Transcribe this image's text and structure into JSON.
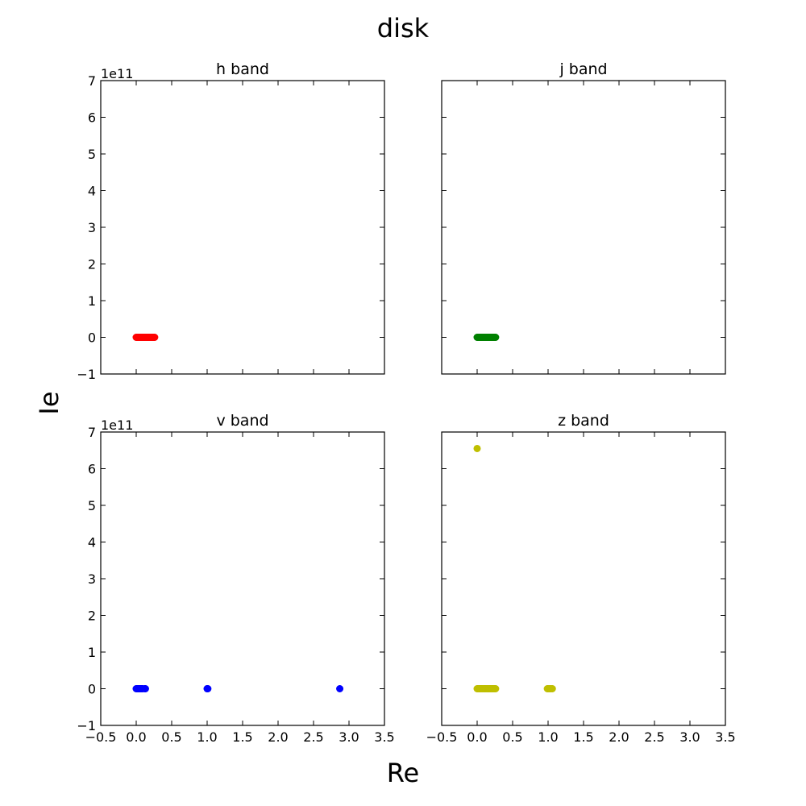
{
  "figure": {
    "title": "disk",
    "xlabel": "Re",
    "ylabel": "Ie"
  },
  "chart_data": [
    {
      "type": "scatter",
      "title": "h band",
      "color": "#ff0000",
      "xlim": [
        -0.5,
        3.5
      ],
      "ylim": [
        -1,
        7
      ],
      "y_offset_label": "1e11",
      "x_ticks": [
        "−0.5",
        "0.0",
        "0.5",
        "1.0",
        "1.5",
        "2.0",
        "2.5",
        "3.0",
        "3.5"
      ],
      "y_ticks": [
        "−1",
        "0",
        "1",
        "2",
        "3",
        "4",
        "5",
        "6",
        "7"
      ],
      "show_x_tick_labels": false,
      "show_y_tick_labels": true,
      "points": [
        {
          "x": 0.0,
          "y": 0
        },
        {
          "x": 0.01,
          "y": 0
        },
        {
          "x": 0.02,
          "y": 0
        },
        {
          "x": 0.03,
          "y": 0
        },
        {
          "x": 0.04,
          "y": 0
        },
        {
          "x": 0.05,
          "y": 0
        },
        {
          "x": 0.06,
          "y": 0
        },
        {
          "x": 0.07,
          "y": 0
        },
        {
          "x": 0.08,
          "y": 0
        },
        {
          "x": 0.09,
          "y": 0
        },
        {
          "x": 0.1,
          "y": 0
        },
        {
          "x": 0.11,
          "y": 0
        },
        {
          "x": 0.12,
          "y": 0
        },
        {
          "x": 0.13,
          "y": 0
        },
        {
          "x": 0.14,
          "y": 0
        },
        {
          "x": 0.15,
          "y": 0
        },
        {
          "x": 0.16,
          "y": 0
        },
        {
          "x": 0.17,
          "y": 0
        },
        {
          "x": 0.18,
          "y": 0
        },
        {
          "x": 0.19,
          "y": 0
        },
        {
          "x": 0.2,
          "y": 0
        },
        {
          "x": 0.21,
          "y": 0
        },
        {
          "x": 0.22,
          "y": 0
        },
        {
          "x": 0.23,
          "y": 0
        },
        {
          "x": 0.24,
          "y": 0
        },
        {
          "x": 0.25,
          "y": 0
        },
        {
          "x": 0.26,
          "y": 0
        }
      ]
    },
    {
      "type": "scatter",
      "title": "j band",
      "color": "#008000",
      "xlim": [
        -0.5,
        3.5
      ],
      "ylim": [
        -1,
        7
      ],
      "y_offset_label": "",
      "x_ticks": [
        "−0.5",
        "0.0",
        "0.5",
        "1.0",
        "1.5",
        "2.0",
        "2.5",
        "3.0",
        "3.5"
      ],
      "y_ticks": [
        "−1",
        "0",
        "1",
        "2",
        "3",
        "4",
        "5",
        "6",
        "7"
      ],
      "show_x_tick_labels": false,
      "show_y_tick_labels": false,
      "points": [
        {
          "x": 0.0,
          "y": 0
        },
        {
          "x": 0.01,
          "y": 0
        },
        {
          "x": 0.02,
          "y": 0
        },
        {
          "x": 0.03,
          "y": 0
        },
        {
          "x": 0.04,
          "y": 0
        },
        {
          "x": 0.05,
          "y": 0
        },
        {
          "x": 0.06,
          "y": 0
        },
        {
          "x": 0.07,
          "y": 0
        },
        {
          "x": 0.08,
          "y": 0
        },
        {
          "x": 0.09,
          "y": 0
        },
        {
          "x": 0.1,
          "y": 0
        },
        {
          "x": 0.11,
          "y": 0
        },
        {
          "x": 0.12,
          "y": 0
        },
        {
          "x": 0.13,
          "y": 0
        },
        {
          "x": 0.14,
          "y": 0
        },
        {
          "x": 0.15,
          "y": 0
        },
        {
          "x": 0.16,
          "y": 0
        },
        {
          "x": 0.17,
          "y": 0
        },
        {
          "x": 0.18,
          "y": 0
        },
        {
          "x": 0.19,
          "y": 0
        },
        {
          "x": 0.2,
          "y": 0
        },
        {
          "x": 0.21,
          "y": 0
        },
        {
          "x": 0.22,
          "y": 0
        },
        {
          "x": 0.23,
          "y": 0
        },
        {
          "x": 0.24,
          "y": 0
        },
        {
          "x": 0.25,
          "y": 0
        },
        {
          "x": 0.26,
          "y": 0
        }
      ]
    },
    {
      "type": "scatter",
      "title": "v band",
      "color": "#0000ff",
      "xlim": [
        -0.5,
        3.5
      ],
      "ylim": [
        -1,
        7
      ],
      "y_offset_label": "1e11",
      "x_ticks": [
        "−0.5",
        "0.0",
        "0.5",
        "1.0",
        "1.5",
        "2.0",
        "2.5",
        "3.0",
        "3.5"
      ],
      "y_ticks": [
        "−1",
        "0",
        "1",
        "2",
        "3",
        "4",
        "5",
        "6",
        "7"
      ],
      "show_x_tick_labels": true,
      "show_y_tick_labels": true,
      "points": [
        {
          "x": 0.0,
          "y": 0
        },
        {
          "x": 0.01,
          "y": 0
        },
        {
          "x": 0.02,
          "y": 0
        },
        {
          "x": 0.03,
          "y": 0
        },
        {
          "x": 0.04,
          "y": 0
        },
        {
          "x": 0.05,
          "y": 0
        },
        {
          "x": 0.06,
          "y": 0
        },
        {
          "x": 0.07,
          "y": 0
        },
        {
          "x": 0.08,
          "y": 0
        },
        {
          "x": 0.09,
          "y": 0
        },
        {
          "x": 0.12,
          "y": 0
        },
        {
          "x": 0.13,
          "y": 0
        },
        {
          "x": 1.0,
          "y": 0
        },
        {
          "x": 1.01,
          "y": 0
        },
        {
          "x": 2.87,
          "y": 0
        }
      ]
    },
    {
      "type": "scatter",
      "title": "z band",
      "color": "#bfbf00",
      "xlim": [
        -0.5,
        3.5
      ],
      "ylim": [
        -1,
        7
      ],
      "y_offset_label": "",
      "x_ticks": [
        "−0.5",
        "0.0",
        "0.5",
        "1.0",
        "1.5",
        "2.0",
        "2.5",
        "3.0",
        "3.5"
      ],
      "y_ticks": [
        "−1",
        "0",
        "1",
        "2",
        "3",
        "4",
        "5",
        "6",
        "7"
      ],
      "show_x_tick_labels": true,
      "show_y_tick_labels": false,
      "points": [
        {
          "x": 0.0,
          "y": 6.55
        },
        {
          "x": 0.0,
          "y": 0
        },
        {
          "x": 0.01,
          "y": 0
        },
        {
          "x": 0.02,
          "y": 0
        },
        {
          "x": 0.03,
          "y": 0
        },
        {
          "x": 0.04,
          "y": 0
        },
        {
          "x": 0.05,
          "y": 0
        },
        {
          "x": 0.06,
          "y": 0
        },
        {
          "x": 0.07,
          "y": 0
        },
        {
          "x": 0.08,
          "y": 0
        },
        {
          "x": 0.09,
          "y": 0
        },
        {
          "x": 0.1,
          "y": 0
        },
        {
          "x": 0.11,
          "y": 0
        },
        {
          "x": 0.12,
          "y": 0
        },
        {
          "x": 0.13,
          "y": 0
        },
        {
          "x": 0.14,
          "y": 0
        },
        {
          "x": 0.15,
          "y": 0
        },
        {
          "x": 0.16,
          "y": 0
        },
        {
          "x": 0.17,
          "y": 0
        },
        {
          "x": 0.18,
          "y": 0
        },
        {
          "x": 0.19,
          "y": 0
        },
        {
          "x": 0.2,
          "y": 0
        },
        {
          "x": 0.21,
          "y": 0
        },
        {
          "x": 0.22,
          "y": 0
        },
        {
          "x": 0.23,
          "y": 0
        },
        {
          "x": 0.24,
          "y": 0
        },
        {
          "x": 0.25,
          "y": 0
        },
        {
          "x": 0.26,
          "y": 0
        },
        {
          "x": 0.99,
          "y": 0
        },
        {
          "x": 1.0,
          "y": 0
        },
        {
          "x": 1.02,
          "y": 0
        },
        {
          "x": 1.04,
          "y": 0
        },
        {
          "x": 1.06,
          "y": 0
        }
      ]
    }
  ]
}
